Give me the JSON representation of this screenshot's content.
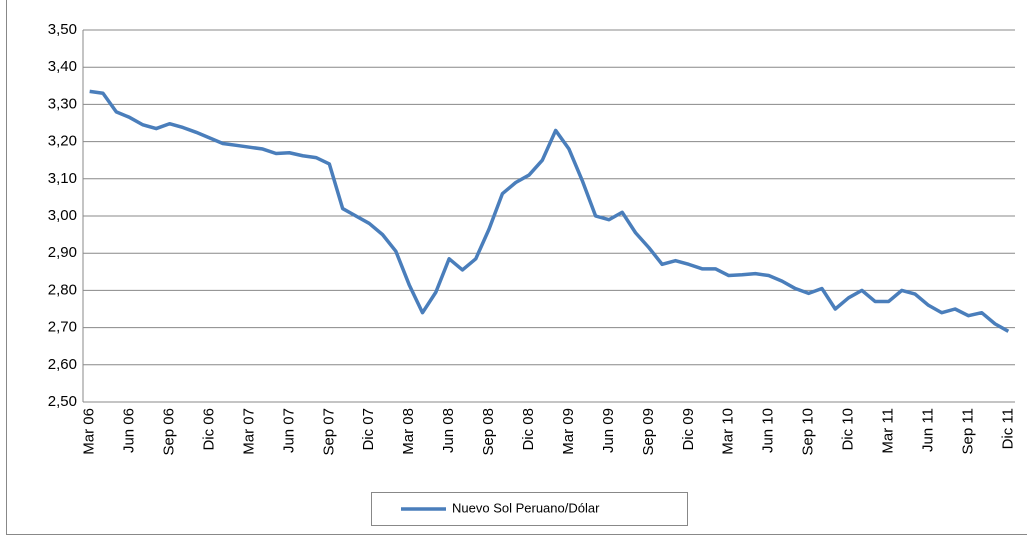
{
  "chart_data": {
    "type": "line",
    "categories": [
      "Mar 06",
      null,
      null,
      "Jun 06",
      null,
      null,
      "Sep 06",
      null,
      null,
      "Dic 06",
      null,
      null,
      "Mar 07",
      null,
      null,
      "Jun 07",
      null,
      null,
      "Sep 07",
      null,
      null,
      "Dic 07",
      null,
      null,
      "Mar 08",
      null,
      null,
      "Jun 08",
      null,
      null,
      "Sep 08",
      null,
      null,
      "Dic 08",
      null,
      null,
      "Mar 09",
      null,
      null,
      "Jun 09",
      null,
      null,
      "Sep 09",
      null,
      null,
      "Dic 09",
      null,
      null,
      "Mar 10",
      null,
      null,
      "Jun 10",
      null,
      null,
      "Sep 10",
      null,
      null,
      "Dic 10",
      null,
      null,
      "Mar 11",
      null,
      null,
      "Jun 11",
      null,
      null,
      "Sep 11",
      null,
      null,
      "Dic 11"
    ],
    "series": [
      {
        "name": "Nuevo Sol Peruano/Dólar",
        "color": "#4a7ebb",
        "values": [
          3.335,
          3.33,
          3.28,
          3.265,
          3.245,
          3.235,
          3.248,
          3.238,
          3.225,
          3.21,
          3.195,
          3.19,
          3.185,
          3.18,
          3.168,
          3.17,
          3.162,
          3.157,
          3.14,
          3.02,
          3.0,
          2.98,
          2.95,
          2.905,
          2.815,
          2.74,
          2.795,
          2.885,
          2.855,
          2.885,
          2.965,
          3.06,
          3.09,
          3.11,
          3.15,
          3.23,
          3.18,
          3.095,
          3.0,
          2.99,
          3.01,
          2.955,
          2.915,
          2.87,
          2.88,
          2.87,
          2.858,
          2.858,
          2.84,
          2.842,
          2.845,
          2.84,
          2.825,
          2.805,
          2.792,
          2.805,
          2.75,
          2.78,
          2.8,
          2.77,
          2.77,
          2.8,
          2.79,
          2.76,
          2.74,
          2.75,
          2.732,
          2.74,
          2.71,
          2.69
        ]
      }
    ],
    "ylim": [
      2.5,
      3.5
    ],
    "yticks": [
      {
        "value": 2.5,
        "label": "2,50"
      },
      {
        "value": 2.6,
        "label": "2,60"
      },
      {
        "value": 2.7,
        "label": "2,70"
      },
      {
        "value": 2.8,
        "label": "2,80"
      },
      {
        "value": 2.9,
        "label": "2,90"
      },
      {
        "value": 3.0,
        "label": "3,00"
      },
      {
        "value": 3.1,
        "label": "3,10"
      },
      {
        "value": 3.2,
        "label": "3,20"
      },
      {
        "value": 3.3,
        "label": "3,30"
      },
      {
        "value": 3.4,
        "label": "3,40"
      },
      {
        "value": 3.5,
        "label": "3,50"
      }
    ],
    "grid": true,
    "legend": "bottom"
  }
}
